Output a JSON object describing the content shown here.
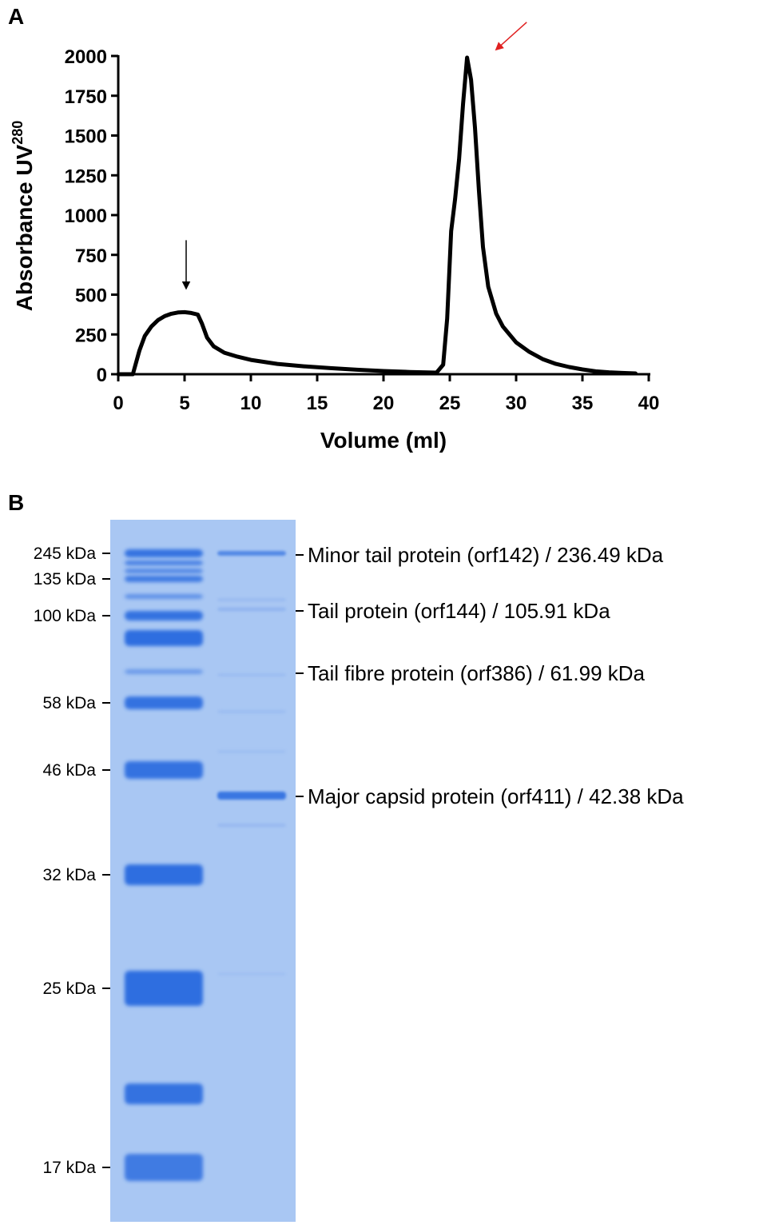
{
  "panel_a": {
    "label": "A",
    "chart_data": {
      "type": "line",
      "title": "",
      "xlabel": "Volume (ml)",
      "ylabel": "Absorbance UV",
      "ylabel_superscript": "280",
      "xlim": [
        0,
        40
      ],
      "ylim": [
        0,
        2000
      ],
      "x_ticks": [
        0,
        5,
        10,
        15,
        20,
        25,
        30,
        35,
        40
      ],
      "y_ticks": [
        0,
        250,
        500,
        750,
        1000,
        1250,
        1500,
        1750,
        2000
      ],
      "grid": false,
      "series": [
        {
          "x": [
            0,
            1.1,
            1.3,
            1.6,
            2,
            2.5,
            3,
            3.5,
            4,
            4.5,
            5,
            5.5,
            6,
            6.3,
            6.7,
            7.2,
            8,
            9,
            10,
            12,
            14,
            16,
            18,
            20,
            22,
            24,
            24.5,
            24.8,
            25.1,
            25.4,
            25.7,
            26,
            26.3,
            26.6,
            26.9,
            27.2,
            27.5,
            27.9,
            28.5,
            29,
            30,
            31,
            32,
            33,
            34,
            35,
            36,
            37,
            38,
            39
          ],
          "y": [
            0,
            0,
            60,
            150,
            240,
            300,
            340,
            365,
            380,
            388,
            390,
            385,
            375,
            320,
            230,
            175,
            135,
            110,
            90,
            65,
            50,
            38,
            28,
            20,
            14,
            10,
            60,
            350,
            900,
            1100,
            1350,
            1700,
            1990,
            1850,
            1550,
            1150,
            800,
            550,
            380,
            300,
            200,
            140,
            95,
            65,
            45,
            30,
            18,
            12,
            8,
            5
          ]
        }
      ],
      "annotations": [
        {
          "kind": "arrow",
          "color": "#000000",
          "points_to": {
            "x": 5,
            "y": 390
          }
        },
        {
          "kind": "arrow",
          "color": "#e02020",
          "points_to": {
            "x": 26.7,
            "y": 1850
          }
        }
      ]
    }
  },
  "panel_b": {
    "label": "B",
    "gel": {
      "ladder_bands": [
        {
          "label": "245 kDa"
        },
        {
          "label": "135 kDa"
        },
        {
          "label": "100 kDa"
        },
        {
          "label": "58 kDa"
        },
        {
          "label": "46 kDa"
        },
        {
          "label": "32 kDa"
        },
        {
          "label": "25 kDa"
        },
        {
          "label": "17 kDa"
        }
      ],
      "sample_annotations": [
        {
          "label": "Minor tail protein (orf142) / 236.49 kDa"
        },
        {
          "label": "Tail protein (orf144) / 105.91 kDa"
        },
        {
          "label": "Tail fibre protein (orf386) / 61.99 kDa"
        },
        {
          "label": "Major capsid protein (orf411) / 42.38 kDa"
        }
      ],
      "colors": {
        "gel_background": "#a9c7f3",
        "band": "#2f6ee0",
        "band_faint": "#7ea6ec"
      }
    }
  }
}
